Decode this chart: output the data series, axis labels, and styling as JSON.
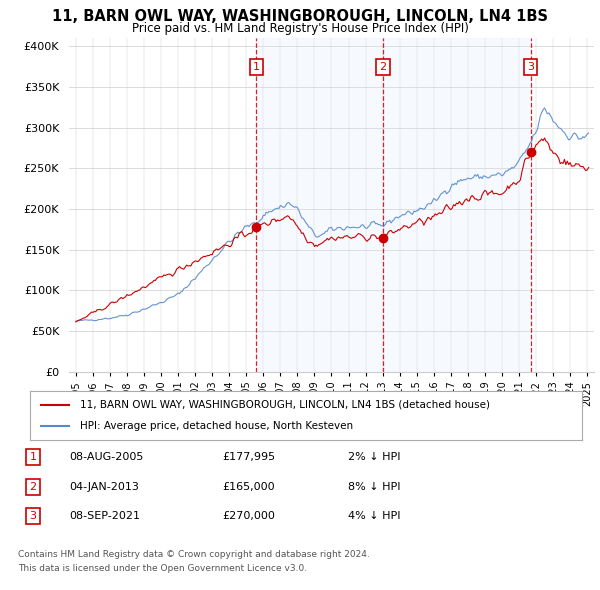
{
  "title": "11, BARN OWL WAY, WASHINGBOROUGH, LINCOLN, LN4 1BS",
  "subtitle": "Price paid vs. HM Land Registry's House Price Index (HPI)",
  "legend_label_red": "11, BARN OWL WAY, WASHINGBOROUGH, LINCOLN, LN4 1BS (detached house)",
  "legend_label_blue": "HPI: Average price, detached house, North Kesteven",
  "ylim": [
    0,
    410000
  ],
  "yticks": [
    0,
    50000,
    100000,
    150000,
    200000,
    250000,
    300000,
    350000,
    400000
  ],
  "transactions": [
    {
      "num": 1,
      "date": "08-AUG-2005",
      "price": 177995,
      "hpi_pct": "2%",
      "year": 2005.6
    },
    {
      "num": 2,
      "date": "04-JAN-2013",
      "price": 165000,
      "hpi_pct": "8%",
      "year": 2013.02
    },
    {
      "num": 3,
      "date": "08-SEP-2021",
      "price": 270000,
      "hpi_pct": "4%",
      "year": 2021.69
    }
  ],
  "footnote1": "Contains HM Land Registry data © Crown copyright and database right 2024.",
  "footnote2": "This data is licensed under the Open Government Licence v3.0.",
  "hpi_color": "#5588cc",
  "price_color": "#cc0000",
  "vline_color": "#cc0000",
  "shade_color": "#ddeeff",
  "background_color": "#ffffff",
  "grid_color": "#cccccc",
  "xstart": 1995,
  "xend": 2025
}
